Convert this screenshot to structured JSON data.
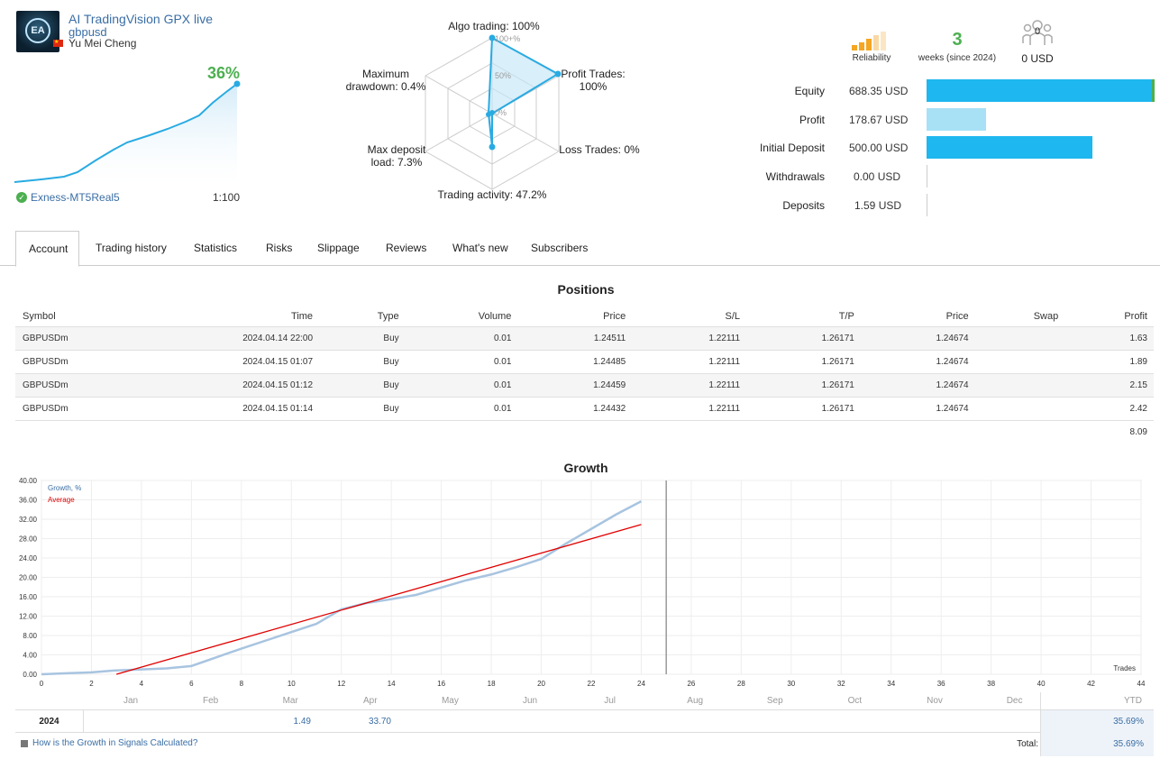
{
  "header": {
    "title": "AI TradingVision GPX live",
    "subtitle": "gbpusd",
    "author": "Yu Mei Cheng",
    "logo_text": "EA",
    "growth_pct": "36%",
    "broker": "Exness-MT5Real5",
    "leverage": "1:100"
  },
  "radar": {
    "algo": "Algo trading: 100%",
    "profit_trades_1": "Profit Trades:",
    "profit_trades_2": "100%",
    "loss_trades": "Loss Trades: 0%",
    "activity": "Trading activity: 47.2%",
    "max_dep_1": "Max deposit",
    "max_dep_2": "load: 7.3%",
    "max_dd_1": "Maximum",
    "max_dd_2": "drawdown: 0.4%",
    "scale_100": "100+%",
    "scale_50": "50%",
    "scale_0": "0%"
  },
  "stats": {
    "reliability": "Reliability",
    "weeks_num": "3",
    "weeks_label": "weeks (since 2024)",
    "subscribers_num": "0",
    "subscribers_usd": "0 USD"
  },
  "balances": [
    {
      "label": "Equity",
      "value": "688.35 USD"
    },
    {
      "label": "Profit",
      "value": "178.67 USD"
    },
    {
      "label": "Initial Deposit",
      "value": "500.00 USD"
    },
    {
      "label": "Withdrawals",
      "value": "0.00 USD"
    },
    {
      "label": "Deposits",
      "value": "1.59 USD"
    }
  ],
  "tabs": [
    "Account",
    "Trading history",
    "Statistics",
    "Risks",
    "Slippage",
    "Reviews",
    "What's new",
    "Subscribers"
  ],
  "positions": {
    "title": "Positions",
    "headers": [
      "Symbol",
      "Time",
      "Type",
      "Volume",
      "Price",
      "S/L",
      "T/P",
      "Price",
      "Swap",
      "Profit"
    ],
    "rows": [
      [
        "GBPUSDm",
        "2024.04.14 22:00",
        "Buy",
        "0.01",
        "1.24511",
        "1.22111",
        "1.26171",
        "1.24674",
        "",
        "1.63"
      ],
      [
        "GBPUSDm",
        "2024.04.15 01:07",
        "Buy",
        "0.01",
        "1.24485",
        "1.22111",
        "1.26171",
        "1.24674",
        "",
        "1.89"
      ],
      [
        "GBPUSDm",
        "2024.04.15 01:12",
        "Buy",
        "0.01",
        "1.24459",
        "1.22111",
        "1.26171",
        "1.24674",
        "",
        "2.15"
      ],
      [
        "GBPUSDm",
        "2024.04.15 01:14",
        "Buy",
        "0.01",
        "1.24432",
        "1.22111",
        "1.26171",
        "1.24674",
        "",
        "2.42"
      ]
    ],
    "total": "8.09"
  },
  "growth": {
    "title": "Growth",
    "legend_growth": "Growth, %",
    "legend_avg": "Average",
    "xlabel": "Trades",
    "months": [
      "Jan",
      "Feb",
      "Mar",
      "Apr",
      "May",
      "Jun",
      "Jul",
      "Aug",
      "Sep",
      "Oct",
      "Nov",
      "Dec",
      "YTD"
    ],
    "year": "2024",
    "year_values": {
      "Mar": "1.49",
      "Apr": "33.70"
    },
    "ytd": "35.69%",
    "help_link": "How is the Growth in Signals Calculated?",
    "total_label": "Total:",
    "total_value": "35.69%"
  },
  "chart_data": {
    "type": "line",
    "title": "Growth",
    "xlabel": "Trades",
    "ylabel": "",
    "xlim": [
      0,
      44
    ],
    "ylim": [
      0,
      40
    ],
    "x_ticks": [
      0,
      2,
      4,
      6,
      8,
      10,
      12,
      14,
      16,
      18,
      20,
      22,
      24,
      26,
      28,
      30,
      32,
      34,
      36,
      38,
      40,
      42,
      44
    ],
    "y_ticks": [
      0,
      4,
      8,
      12,
      16,
      20,
      24,
      28,
      32,
      36,
      40
    ],
    "series": [
      {
        "name": "Growth, %",
        "color": "#a8c4e0",
        "x": [
          0,
          1,
          2,
          3,
          4,
          5,
          6,
          7,
          8,
          9,
          10,
          11,
          12,
          13,
          14,
          15,
          16,
          17,
          18,
          19,
          20,
          21,
          22,
          23,
          24
        ],
        "values": [
          0,
          0.2,
          0.4,
          0.8,
          1.0,
          1.2,
          1.7,
          3.5,
          5.3,
          7.0,
          8.7,
          10.4,
          13.4,
          14.7,
          15.5,
          16.4,
          17.9,
          19.4,
          20.6,
          22.1,
          23.8,
          27.0,
          30.0,
          33.0,
          35.7
        ]
      },
      {
        "name": "Average",
        "color": "#e00000",
        "x": [
          3,
          24
        ],
        "values": [
          0,
          30.9
        ]
      }
    ]
  },
  "colors": {
    "accent": "#3a6ea5",
    "green": "#4caf50",
    "equity_bar": "#1fb7ef",
    "profit_bar": "#a8e1f6"
  }
}
